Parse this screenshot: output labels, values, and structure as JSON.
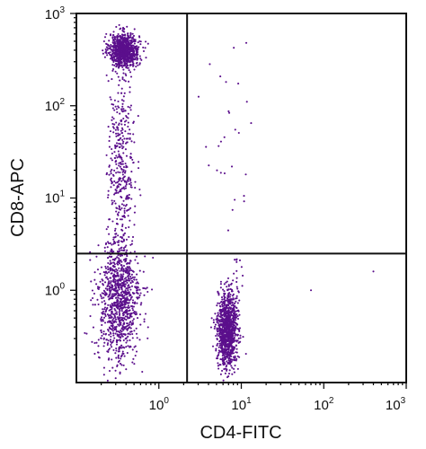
{
  "chart_data": {
    "type": "scatter",
    "title": "",
    "xlabel": "CD4-FITC",
    "ylabel": "CD8-APC",
    "x_scale": "log",
    "y_scale": "log",
    "xlim": [
      0.1,
      1000
    ],
    "ylim": [
      0.1,
      1000
    ],
    "x_ticks": [
      {
        "base": "10",
        "exp": "0",
        "value": 1
      },
      {
        "base": "10",
        "exp": "1",
        "value": 10
      },
      {
        "base": "10",
        "exp": "2",
        "value": 100
      },
      {
        "base": "10",
        "exp": "3",
        "value": 1000
      }
    ],
    "y_ticks": [
      {
        "base": "10",
        "exp": "0",
        "value": 1
      },
      {
        "base": "10",
        "exp": "1",
        "value": 10
      },
      {
        "base": "10",
        "exp": "2",
        "value": 100
      },
      {
        "base": "10",
        "exp": "3",
        "value": 1000
      }
    ],
    "quadrant_gates": {
      "x": 2.2,
      "y": 2.5
    },
    "grid": false,
    "legend": "none",
    "point_color": "#5b0f8c",
    "series": [
      {
        "populations": [
          {
            "label": "CD8+ CD4- cluster",
            "count": 900,
            "center": [
              0.38,
              400
            ],
            "spread_log10": [
              0.09,
              0.09
            ]
          },
          {
            "label": "CD8+ CD4- stream",
            "count": 400,
            "center": [
              0.35,
              25
            ],
            "spread_log10": [
              0.08,
              0.55
            ]
          },
          {
            "label": "CD8- CD4- cluster",
            "count": 1000,
            "center": [
              0.33,
              0.75
            ],
            "spread_log10": [
              0.13,
              0.34
            ]
          },
          {
            "label": "CD4+ CD8- cluster",
            "count": 1100,
            "center": [
              6.8,
              0.38
            ],
            "spread_log10": [
              0.06,
              0.2
            ]
          },
          {
            "label": "CD8+ CD4+ scatter",
            "count": 28,
            "center": [
              8,
              40
            ],
            "spread_log10": [
              0.15,
              0.6
            ]
          },
          {
            "label": "CD8- CD4+ outliers",
            "count": 10,
            "center": [
              8.5,
              1.6
            ],
            "spread_log10": [
              0.1,
              0.15
            ]
          }
        ],
        "outlier_points": [
          {
            "x": 70,
            "y": 1.0
          },
          {
            "x": 400,
            "y": 1.6
          }
        ]
      }
    ]
  }
}
